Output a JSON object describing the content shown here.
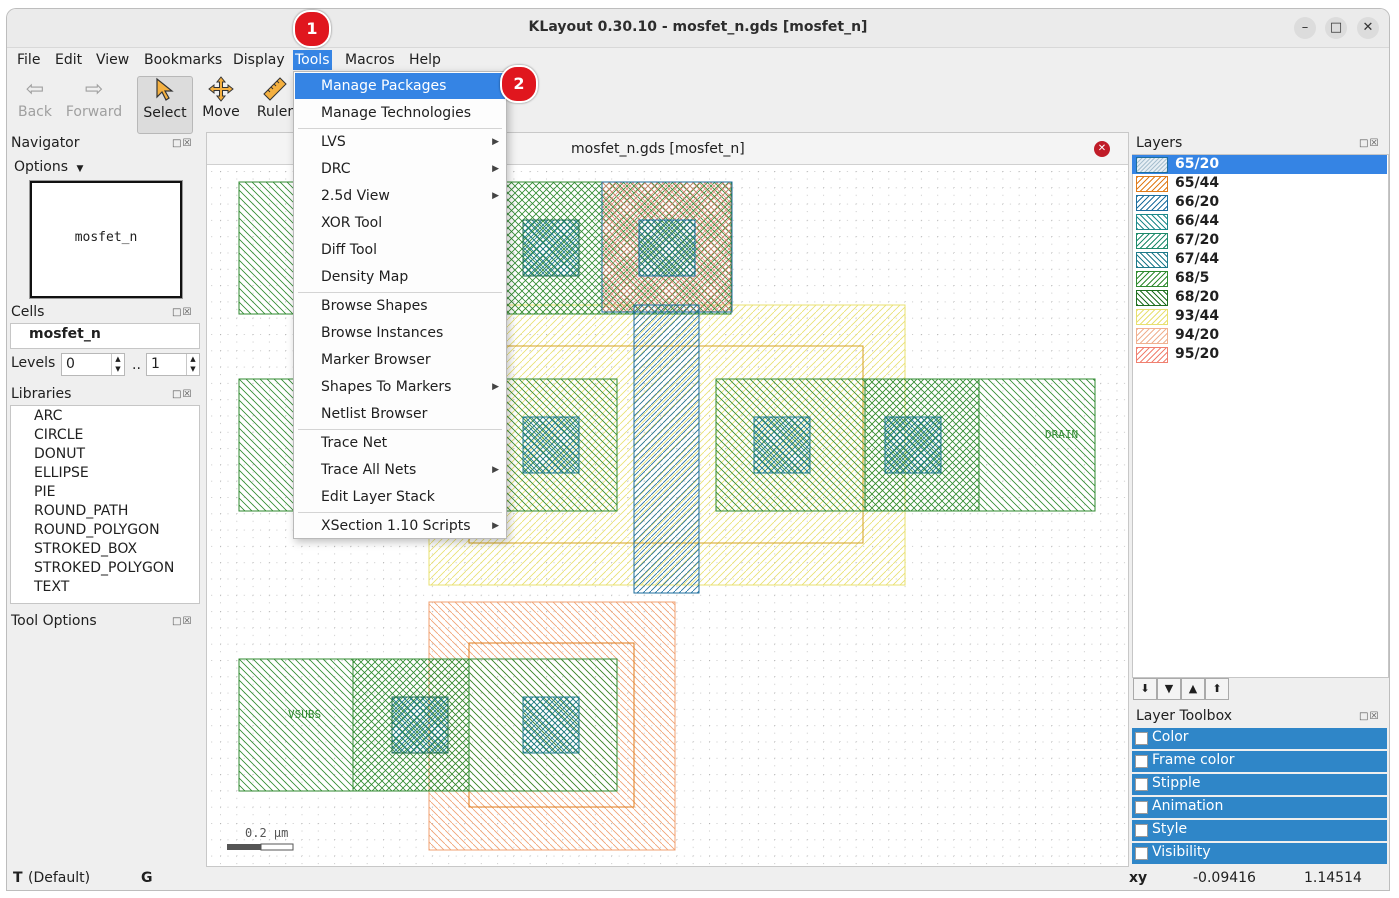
{
  "window": {
    "title": "KLayout 0.30.10 - mosfet_n.gds [mosfet_n]"
  },
  "menubar": [
    "File",
    "Edit",
    "View",
    "Bookmarks",
    "Display",
    "Tools",
    "Macros",
    "Help"
  ],
  "toolbar": {
    "back": "Back",
    "forward": "Forward",
    "select": "Select",
    "move": "Move",
    "ruler": "Ruler"
  },
  "navigator": {
    "title": "Navigator",
    "options": "Options",
    "preview_label": "mosfet_n"
  },
  "cells": {
    "title": "Cells",
    "item": "mosfet_n",
    "levels_label": "Levels",
    "level_from": "0",
    "level_sep": "..",
    "level_to": "1"
  },
  "libraries": {
    "title": "Libraries",
    "items": [
      "ARC",
      "CIRCLE",
      "DONUT",
      "ELLIPSE",
      "PIE",
      "ROUND_PATH",
      "ROUND_POLYGON",
      "STROKED_BOX",
      "STROKED_POLYGON",
      "TEXT"
    ]
  },
  "tool_options": {
    "title": "Tool Options"
  },
  "canvas": {
    "tab_title": "mosfet_n.gds [mosfet_n]",
    "labels": {
      "drain": "DRAIN",
      "vsubs": "VSUBS"
    },
    "scale": "0.2 µm"
  },
  "layers": {
    "title": "Layers",
    "items": [
      {
        "name": "65/20",
        "color": "#1d6e9e",
        "pattern": "dense"
      },
      {
        "name": "65/44",
        "color": "#e07b1a",
        "pattern": "dense"
      },
      {
        "name": "66/20",
        "color": "#1d6e9e",
        "pattern": "diag"
      },
      {
        "name": "66/44",
        "color": "#1d8a8a",
        "pattern": "cross"
      },
      {
        "name": "67/20",
        "color": "#1d8a6a",
        "pattern": "diag"
      },
      {
        "name": "67/44",
        "color": "#1d7a8a",
        "pattern": "back"
      },
      {
        "name": "68/5",
        "color": "#2f8a2f",
        "pattern": "diag"
      },
      {
        "name": "68/20",
        "color": "#1f6e1f",
        "pattern": "back"
      },
      {
        "name": "93/44",
        "color": "#e8e070",
        "pattern": "diag"
      },
      {
        "name": "94/20",
        "color": "#f0b090",
        "pattern": "diag"
      },
      {
        "name": "95/20",
        "color": "#f08070",
        "pattern": "diag"
      }
    ]
  },
  "layer_toolbox": {
    "title": "Layer Toolbox",
    "items": [
      "Color",
      "Frame color",
      "Stipple",
      "Animation",
      "Style",
      "Visibility"
    ]
  },
  "tools_menu": {
    "groups": [
      [
        {
          "label": "Manage Packages",
          "submenu": false
        },
        {
          "label": "Manage Technologies",
          "submenu": false
        }
      ],
      [
        {
          "label": "LVS",
          "submenu": true
        },
        {
          "label": "DRC",
          "submenu": true
        },
        {
          "label": "2.5d View",
          "submenu": true
        },
        {
          "label": "XOR Tool",
          "submenu": false
        },
        {
          "label": "Diff Tool",
          "submenu": false
        },
        {
          "label": "Density Map",
          "submenu": false
        }
      ],
      [
        {
          "label": "Browse Shapes",
          "submenu": false
        },
        {
          "label": "Browse Instances",
          "submenu": false
        },
        {
          "label": "Marker Browser",
          "submenu": false
        },
        {
          "label": "Shapes To Markers",
          "submenu": true
        },
        {
          "label": "Netlist Browser",
          "submenu": false
        }
      ],
      [
        {
          "label": "Trace Net",
          "submenu": false
        },
        {
          "label": "Trace All Nets",
          "submenu": true
        },
        {
          "label": "Edit Layer Stack",
          "submenu": false
        }
      ],
      [
        {
          "label": "XSection 1.10 Scripts",
          "submenu": true
        }
      ]
    ]
  },
  "status": {
    "mode": "T",
    "mode_text": "(Default)",
    "grid": "G",
    "coord_label": "xy",
    "x": "-0.09416",
    "y": "1.14514"
  },
  "annotations": {
    "step1": "1",
    "step2": "2"
  }
}
